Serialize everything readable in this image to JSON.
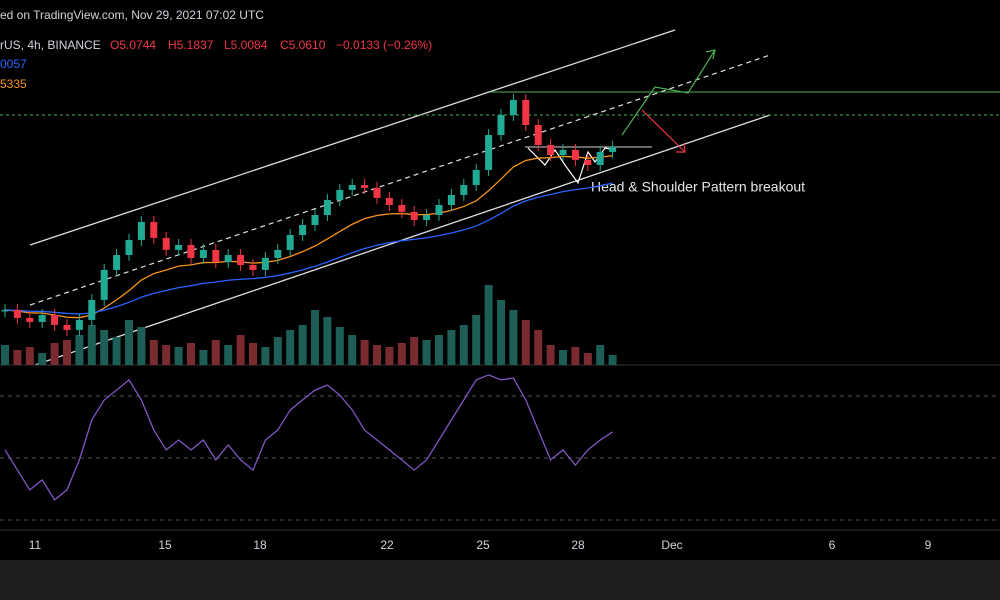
{
  "header": {
    "source": "ed on TradingView.com, Nov 29, 2021 07:02 UTC",
    "symbol": "rUS, 4h, BINANCE",
    "open": "O5.0744",
    "high": "H5.1837",
    "low": "L5.0084",
    "close": "C5.0610",
    "change": "−0.0133 (−0.26%)",
    "ma1": "0057",
    "ma2": "5335"
  },
  "annotation": "Head & Shoulder Pattern breakout",
  "chart_data": {
    "type": "candlestick",
    "x_labels": [
      "11",
      "15",
      "18",
      "22",
      "25",
      "28",
      "Dec",
      "6",
      "9"
    ],
    "closes": [
      3.838,
      3.778,
      3.748,
      3.8,
      3.725,
      3.688,
      3.763,
      3.913,
      4.138,
      4.25,
      4.363,
      4.498,
      4.378,
      4.288,
      4.325,
      4.228,
      4.288,
      4.198,
      4.25,
      4.175,
      4.138,
      4.228,
      4.288,
      4.4,
      4.475,
      4.55,
      4.663,
      4.738,
      4.775,
      4.753,
      4.678,
      4.625,
      4.573,
      4.513,
      4.55,
      4.625,
      4.7,
      4.775,
      4.888,
      5.15,
      5.3,
      5.413,
      5.225,
      5.075,
      5.0,
      5.038,
      4.963,
      4.925,
      5.023,
      5.061
    ],
    "volumes": [
      20,
      15,
      18,
      12,
      22,
      25,
      30,
      40,
      35,
      28,
      45,
      38,
      25,
      20,
      18,
      22,
      15,
      25,
      20,
      30,
      22,
      18,
      28,
      35,
      40,
      55,
      48,
      38,
      30,
      25,
      20,
      18,
      22,
      28,
      25,
      30,
      35,
      40,
      50,
      80,
      65,
      55,
      45,
      35,
      20,
      15,
      18,
      12,
      20,
      10
    ],
    "rsi": [
      52.6,
      46.1,
      39.7,
      42.9,
      36.5,
      39.7,
      49.4,
      62.3,
      68.7,
      71.9,
      75.2,
      68.7,
      59.0,
      52.6,
      55.8,
      52.6,
      55.8,
      49.4,
      54.2,
      49.4,
      46.1,
      55.8,
      59.0,
      65.5,
      68.7,
      71.9,
      73.5,
      70.3,
      65.5,
      59.0,
      55.8,
      52.6,
      49.4,
      46.1,
      49.4,
      55.8,
      62.3,
      68.7,
      75.2,
      76.8,
      75.2,
      75.8,
      68.7,
      59.0,
      49.4,
      52.6,
      47.7,
      52.6,
      55.8,
      58.4
    ],
    "rsi_levels": [
      70,
      50,
      30
    ]
  }
}
